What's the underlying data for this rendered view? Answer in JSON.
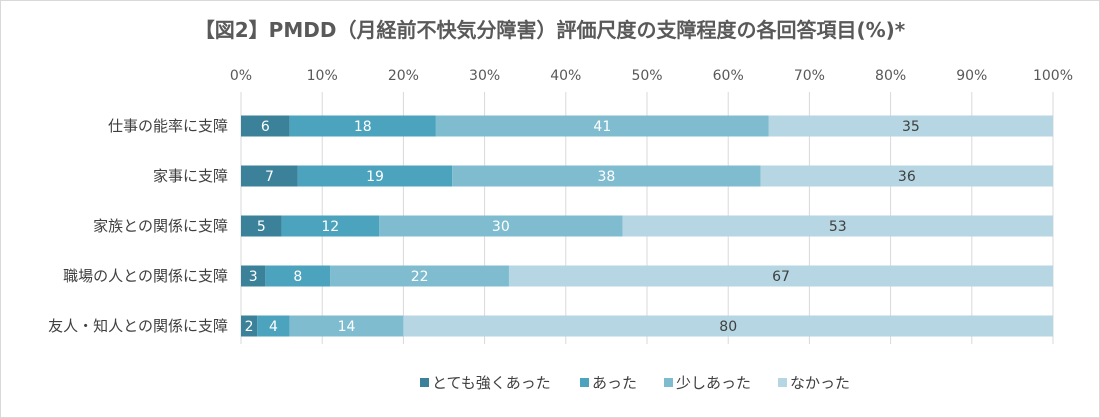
{
  "chart_data": {
    "type": "bar",
    "orientation": "horizontal",
    "stacked": "percent",
    "title": "【図2】PMDD（月経前不快気分障害）評価尺度の支障程度の各回答項目(%)*",
    "categories": [
      "仕事の能率に支障",
      "家事に支障",
      "家族との関係に支障",
      "職場の人との関係に支障",
      "友人・知人との関係に支障"
    ],
    "series": [
      {
        "name": "とても強くあった",
        "color": "#3a8199",
        "values": [
          6,
          7,
          5,
          3,
          2
        ]
      },
      {
        "name": "あった",
        "color": "#4ba3bd",
        "values": [
          18,
          19,
          12,
          8,
          4
        ]
      },
      {
        "name": "少しあった",
        "color": "#7fbcd0",
        "values": [
          41,
          38,
          30,
          22,
          14
        ]
      },
      {
        "name": "なかった",
        "color": "#b5d6e2",
        "values": [
          35,
          36,
          53,
          67,
          80
        ]
      }
    ],
    "xlim": [
      0,
      100
    ],
    "xticks": [
      "0%",
      "10%",
      "20%",
      "30%",
      "40%",
      "50%",
      "60%",
      "70%",
      "80%",
      "90%",
      "100%"
    ],
    "grid": true,
    "legend_position": "bottom"
  }
}
